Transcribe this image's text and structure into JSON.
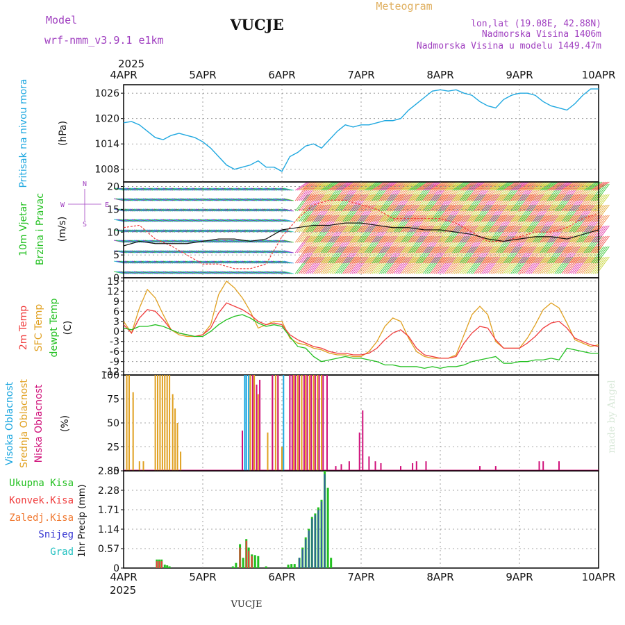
{
  "header": {
    "model_label": "Model",
    "model_name": "wrf-nmm_v3.9.1 e1km",
    "station": "VUCJE",
    "product": "Meteogram",
    "coords": "lon,lat (19.08E, 42.88N)",
    "elevation": "Nadmorska Visina 1406m",
    "model_elevation": "Nadmorska Visina u modelu 1449.47m",
    "year": "2025",
    "footer_station": "VUCJE",
    "credit": "made by Angel"
  },
  "time_axis": {
    "labels": [
      "4APR",
      "5APR",
      "6APR",
      "7APR",
      "8APR",
      "9APR",
      "10APR"
    ],
    "year": "2025"
  },
  "colors": {
    "pressure": "#1fa8e0",
    "t2m": "#f03c3c",
    "sfc": "#e0a020",
    "dewpt": "#22c020",
    "high_cloud": "#1fa8e0",
    "mid_cloud": "#e0a020",
    "low_cloud": "#d0107a",
    "total_precip": "#22c020",
    "conv_precip": "#f03c3c",
    "frozen_precip": "#f07830",
    "snow": "#3030d0",
    "hail": "#20c0c0",
    "title_purple": "#a040c0"
  },
  "panels": {
    "pressure": {
      "labels": [
        "Pritisak na nivou mora",
        "(hPa)"
      ],
      "ticks": [
        "1008",
        "1014",
        "1020",
        "1026"
      ]
    },
    "wind": {
      "labels": [
        "10m Vjetar",
        "Brzina i Pravac",
        "(m/s)"
      ],
      "ticks": [
        "0",
        "5",
        "10",
        "15",
        "20"
      ],
      "compass": [
        "N",
        "W",
        "E",
        "S"
      ]
    },
    "temp": {
      "labels": [
        "2m Temp",
        "SFC Temp",
        "dewpt Temp",
        "(C)"
      ],
      "ticks": [
        "-12",
        "-9",
        "-6",
        "-3",
        "0",
        "3",
        "6",
        "9",
        "12",
        "15"
      ]
    },
    "cloud": {
      "labels": [
        "Visoka Oblacnost",
        "Srednja Oblacnost",
        "Niska Oblacnost",
        "(%)"
      ],
      "ticks": [
        "0",
        "25",
        "50",
        "75",
        "100"
      ]
    },
    "precip": {
      "labels": [
        "Ukupna Kisa",
        "Konvek.Kisa",
        "Zaledj.Kisa",
        "Snijeg",
        "Grad",
        "1hr Precip (mm)"
      ],
      "ticks": [
        "0",
        "0.57",
        "1.14",
        "1.71",
        "2.28",
        "2.85"
      ]
    }
  },
  "chart_data": [
    {
      "type": "line",
      "name": "pressure",
      "xlabel": "",
      "ylabel": "Pritisak na nivou mora (hPa)",
      "xlim_days": [
        0,
        6
      ],
      "ylim": [
        1005,
        1028
      ],
      "x": [
        0,
        0.1,
        0.2,
        0.3,
        0.4,
        0.5,
        0.6,
        0.7,
        0.8,
        0.9,
        1.0,
        1.1,
        1.2,
        1.3,
        1.4,
        1.5,
        1.6,
        1.7,
        1.8,
        1.9,
        2.0,
        2.1,
        2.2,
        2.3,
        2.4,
        2.5,
        2.6,
        2.7,
        2.8,
        2.9,
        3.0,
        3.1,
        3.2,
        3.3,
        3.4,
        3.5,
        3.6,
        3.7,
        3.8,
        3.9,
        4.0,
        4.1,
        4.2,
        4.3,
        4.4,
        4.5,
        4.6,
        4.7,
        4.8,
        4.9,
        5.0,
        5.1,
        5.2,
        5.3,
        5.4,
        5.5,
        5.6,
        5.7,
        5.8,
        5.9,
        6.0
      ],
      "series": [
        {
          "name": "Pritisak na nivou mora",
          "values": [
            1019,
            1019.3,
            1018.5,
            1017,
            1015.5,
            1015,
            1016,
            1016.5,
            1016,
            1015.5,
            1014.5,
            1013,
            1011,
            1009,
            1008,
            1008.5,
            1009,
            1010,
            1008.5,
            1008.5,
            1007.5,
            1011,
            1012,
            1013.5,
            1014,
            1013,
            1015,
            1017,
            1018.5,
            1018,
            1018.5,
            1018.5,
            1019,
            1019.5,
            1019.5,
            1020,
            1022,
            1023.5,
            1025,
            1026.5,
            1026.8,
            1026.5,
            1026.8,
            1026,
            1025.5,
            1024,
            1023,
            1022.5,
            1024.5,
            1025.5,
            1026,
            1026,
            1025.5,
            1024,
            1023,
            1022.5,
            1022,
            1023.5,
            1025.5,
            1027,
            1027
          ]
        }
      ]
    },
    {
      "type": "line",
      "name": "wind_speed",
      "xlabel": "",
      "ylabel": "10m Vjetar Brzina i Pravac (m/s)",
      "xlim_days": [
        0,
        6
      ],
      "ylim": [
        0,
        21
      ],
      "x": [
        0,
        0.2,
        0.4,
        0.6,
        0.8,
        1.0,
        1.2,
        1.4,
        1.6,
        1.8,
        2.0,
        2.2,
        2.4,
        2.6,
        2.8,
        3.0,
        3.2,
        3.4,
        3.6,
        3.8,
        4.0,
        4.2,
        4.4,
        4.6,
        4.8,
        5.0,
        5.2,
        5.4,
        5.6,
        5.8,
        6.0
      ],
      "series": [
        {
          "name": "mean",
          "values": [
            7,
            8,
            7.5,
            7.5,
            7.5,
            8,
            8.5,
            8.5,
            8,
            8.5,
            10.5,
            11,
            11.5,
            11.5,
            12,
            12,
            11.5,
            11,
            11,
            10.5,
            10.5,
            10,
            9.5,
            8.5,
            8,
            8.5,
            9,
            9,
            8.5,
            9.5,
            10.5
          ]
        },
        {
          "name": "gust",
          "values": [
            11,
            11.5,
            8.5,
            7,
            5,
            3,
            3,
            2,
            2,
            3,
            9,
            13,
            16,
            17,
            17,
            16,
            15,
            13,
            13,
            13,
            13,
            12,
            10,
            8,
            8,
            9,
            10,
            10,
            11,
            13,
            14
          ]
        }
      ]
    },
    {
      "type": "line",
      "name": "temperature",
      "xlabel": "",
      "ylabel": "(C)",
      "xlim_days": [
        0,
        6
      ],
      "ylim": [
        -13,
        16
      ],
      "x": [
        0,
        0.1,
        0.2,
        0.3,
        0.4,
        0.5,
        0.6,
        0.7,
        0.8,
        0.9,
        1.0,
        1.1,
        1.2,
        1.3,
        1.4,
        1.5,
        1.6,
        1.7,
        1.8,
        1.9,
        2.0,
        2.1,
        2.2,
        2.3,
        2.4,
        2.5,
        2.6,
        2.7,
        2.8,
        2.9,
        3.0,
        3.1,
        3.2,
        3.3,
        3.4,
        3.5,
        3.6,
        3.7,
        3.8,
        3.9,
        4.0,
        4.1,
        4.2,
        4.3,
        4.4,
        4.5,
        4.6,
        4.7,
        4.8,
        4.9,
        5.0,
        5.1,
        5.2,
        5.3,
        5.4,
        5.5,
        5.6,
        5.7,
        5.8,
        5.9,
        6.0
      ],
      "series": [
        {
          "name": "2m Temp",
          "values": [
            2,
            -0.5,
            4,
            6.5,
            6,
            3.5,
            0.5,
            -0.5,
            -1,
            -1.5,
            -1,
            1,
            5.5,
            8.5,
            7.5,
            6.5,
            5,
            3,
            2,
            2.5,
            2,
            -1,
            -2.5,
            -3.5,
            -4.5,
            -5,
            -6,
            -6.5,
            -6.5,
            -7,
            -7,
            -6.5,
            -5,
            -2.5,
            -0.5,
            0.5,
            -1.5,
            -5,
            -7,
            -7.5,
            -8,
            -8,
            -7.5,
            -3.5,
            -0.5,
            1.5,
            1,
            -2.5,
            -5,
            -5,
            -5,
            -3.5,
            -1.5,
            1,
            2.5,
            3,
            1,
            -2,
            -3,
            -4,
            -4.5
          ]
        },
        {
          "name": "SFC Temp",
          "values": [
            3,
            -0.5,
            7,
            12.5,
            10,
            5,
            0.5,
            -1,
            -1.5,
            -1.5,
            -1,
            2,
            11,
            15,
            13,
            10,
            6,
            1,
            2,
            3,
            3,
            -2,
            -3.5,
            -4,
            -5,
            -5.5,
            -6.5,
            -7,
            -7,
            -7.5,
            -7.5,
            -6,
            -3,
            1.5,
            4,
            3,
            -2,
            -6,
            -7.5,
            -8,
            -8,
            -8,
            -7,
            -1,
            5,
            7.5,
            5,
            -3,
            -5,
            -5,
            -5,
            -2,
            2,
            6.5,
            8.5,
            7,
            2.5,
            -2.5,
            -3.5,
            -4.5,
            -4
          ]
        },
        {
          "name": "dewpt Temp",
          "values": [
            1,
            0.5,
            1.5,
            1.5,
            2,
            1.5,
            0.5,
            -0.5,
            -1,
            -1.5,
            -1.5,
            0,
            2,
            3.5,
            4.5,
            5,
            4,
            2.5,
            1.5,
            2,
            1.5,
            -1.5,
            -4.5,
            -5,
            -7.5,
            -9,
            -8.5,
            -8,
            -7.5,
            -8,
            -8,
            -8.5,
            -9,
            -10,
            -10,
            -10.5,
            -10.5,
            -10.5,
            -11,
            -10.5,
            -11,
            -10.5,
            -10.5,
            -10,
            -9,
            -8.5,
            -8,
            -7.5,
            -9.5,
            -9.5,
            -9,
            -9,
            -8.5,
            -8.5,
            -8,
            -8.5,
            -5,
            -5.5,
            -6,
            -6.5,
            -6.5
          ]
        }
      ]
    },
    {
      "type": "bar",
      "name": "cloud_cover",
      "xlabel": "",
      "ylabel": "(%)",
      "xlim_days": [
        0,
        6
      ],
      "ylim": [
        0,
        100
      ],
      "series": [
        {
          "name": "Visoka Oblacnost",
          "x": [
            1.53,
            1.55,
            1.58,
            2.02,
            2.45
          ],
          "values": [
            100,
            100,
            100,
            100,
            75
          ]
        },
        {
          "name": "Srednja Oblacnost",
          "x": [
            0.04,
            0.07,
            0.12,
            0.2,
            0.25,
            0.4,
            0.43,
            0.46,
            0.49,
            0.52,
            0.55,
            0.58,
            0.62,
            0.65,
            0.68,
            0.72,
            1.5,
            1.6,
            1.65,
            1.7,
            1.82,
            1.88,
            1.92,
            1.95,
            2.0,
            2.1,
            2.15,
            2.2,
            2.25,
            2.3,
            2.35,
            2.4,
            2.45,
            2.5
          ],
          "values": [
            100,
            100,
            82,
            10,
            10,
            100,
            100,
            100,
            100,
            100,
            100,
            100,
            80,
            65,
            50,
            20,
            20,
            100,
            100,
            80,
            40,
            100,
            100,
            100,
            25,
            100,
            100,
            100,
            100,
            100,
            100,
            100,
            100,
            100
          ]
        },
        {
          "name": "Niska Oblacnost",
          "x": [
            1.5,
            1.63,
            1.68,
            1.72,
            1.88,
            1.95,
            2.1,
            2.13,
            2.17,
            2.22,
            2.28,
            2.32,
            2.37,
            2.42,
            2.47,
            2.52,
            2.57,
            2.68,
            2.75,
            2.85,
            2.98,
            3.02,
            3.1,
            3.18,
            3.25,
            3.5,
            3.65,
            3.7,
            3.82,
            4.5,
            4.7,
            5.25,
            5.3,
            5.5
          ],
          "values": [
            42,
            100,
            90,
            95,
            100,
            100,
            100,
            100,
            100,
            100,
            100,
            100,
            100,
            100,
            100,
            100,
            100,
            5,
            7,
            10,
            40,
            63,
            15,
            10,
            8,
            5,
            8,
            10,
            10,
            5,
            5,
            10,
            10,
            10
          ]
        }
      ]
    },
    {
      "type": "bar",
      "name": "precip_1hr",
      "xlabel": "",
      "ylabel": "1hr Precip (mm)",
      "xlim_days": [
        0,
        6
      ],
      "ylim": [
        0,
        2.85
      ],
      "series": [
        {
          "name": "Ukupna Kisa",
          "x": [
            0.42,
            0.45,
            0.48,
            0.52,
            0.55,
            0.58,
            1.38,
            1.42,
            1.47,
            1.51,
            1.55,
            1.58,
            1.62,
            1.66,
            1.7,
            1.8,
            2.08,
            2.12,
            2.16,
            2.22,
            2.26,
            2.3,
            2.34,
            2.38,
            2.42,
            2.46,
            2.5,
            2.54,
            2.58,
            2.62
          ],
          "values": [
            0.25,
            0.25,
            0.25,
            0.1,
            0.08,
            0.05,
            0.05,
            0.15,
            0.7,
            0.3,
            0.85,
            0.6,
            0.4,
            0.38,
            0.35,
            0.05,
            0.1,
            0.12,
            0.12,
            0.3,
            0.6,
            0.9,
            1.15,
            1.5,
            1.6,
            1.78,
            2.0,
            2.85,
            2.35,
            0.3
          ]
        },
        {
          "name": "Konvek.Kisa",
          "x": [
            0.42,
            0.45,
            0.48,
            1.47,
            1.55,
            1.58,
            1.62
          ],
          "values": [
            0.2,
            0.2,
            0.2,
            0.6,
            0.8,
            0.5,
            0.35
          ]
        },
        {
          "name": "Snijeg",
          "x": [
            2.22,
            2.26,
            2.3,
            2.34,
            2.38,
            2.42,
            2.46,
            2.5,
            2.54
          ],
          "values": [
            0.3,
            0.55,
            0.85,
            1.1,
            1.45,
            1.55,
            1.7,
            1.95,
            2.75
          ]
        }
      ]
    }
  ]
}
